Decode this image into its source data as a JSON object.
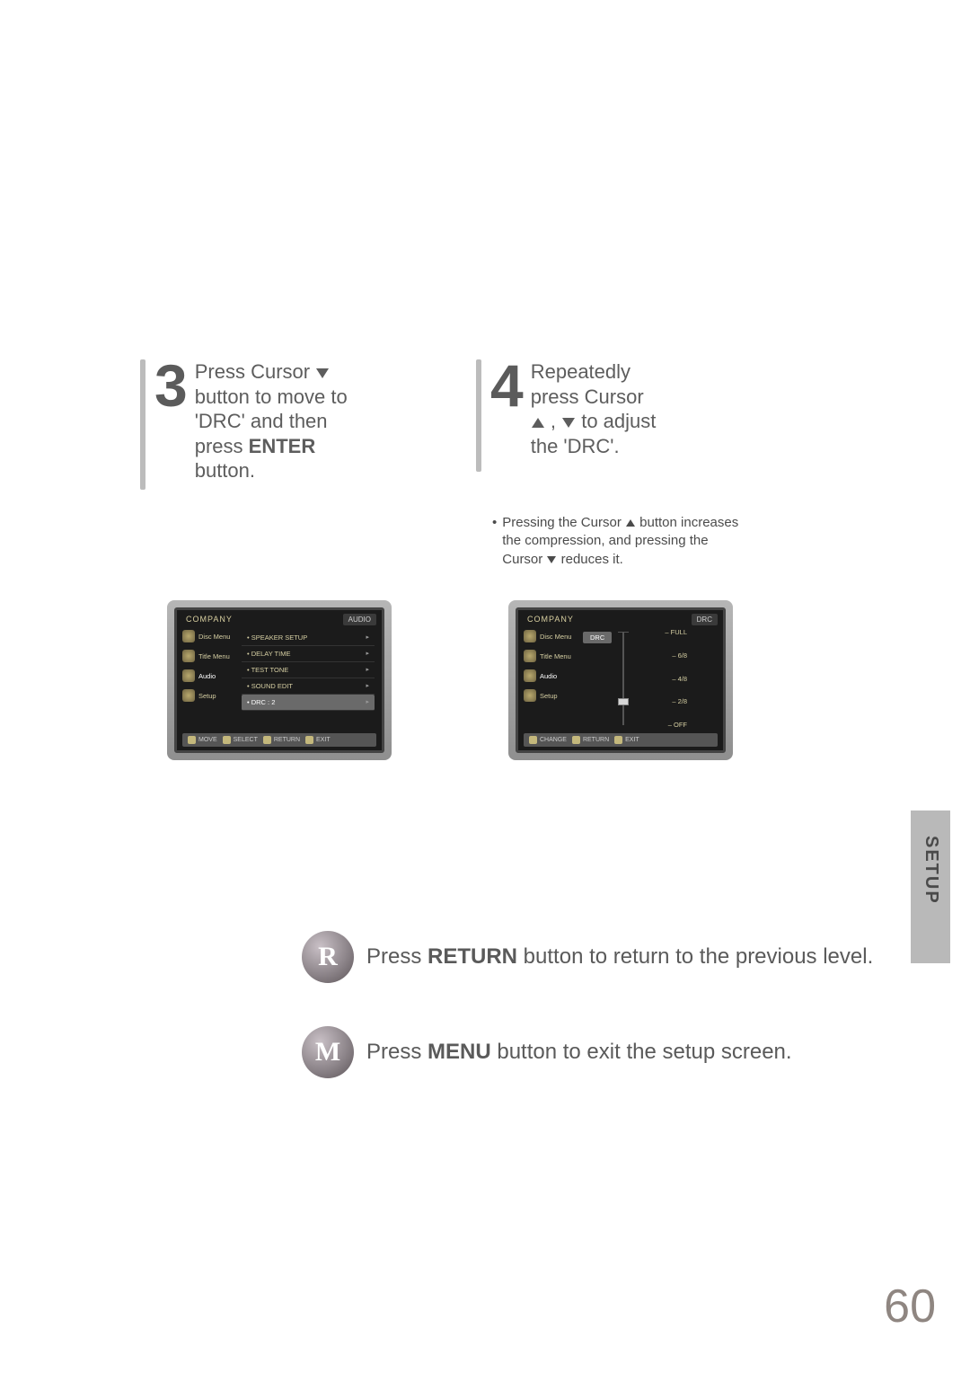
{
  "steps": {
    "s3": {
      "num": "3",
      "line1": "Press Cursor",
      "line2": "button to move to",
      "line3": "'DRC' and then",
      "line4a": "press ",
      "line4b": "ENTER",
      "line5": "button."
    },
    "s4": {
      "num": "4",
      "line1": "Repeatedly",
      "line2": "press Cursor",
      "line3a": ",",
      "line3b": " to adjust",
      "line4": "the 'DRC'."
    }
  },
  "note": {
    "l1a": "Pressing the Cursor ",
    "l1b": " button increases",
    "l2": "the compression, and pressing the",
    "l3a": "Cursor ",
    "l3b": " reduces it."
  },
  "tv3": {
    "title": "COMPANY",
    "tag": "AUDIO",
    "side": [
      "Disc Menu",
      "Title Menu",
      "Audio",
      "Setup"
    ],
    "rows": [
      {
        "label": "SPEAKER SETUP",
        "sel": false
      },
      {
        "label": "DELAY TIME",
        "sel": false
      },
      {
        "label": "TEST TONE",
        "sel": false
      },
      {
        "label": "SOUND EDIT",
        "sel": false
      },
      {
        "label": "DRC",
        "sel": true,
        "val": ": 2"
      }
    ],
    "footer": [
      "MOVE",
      "SELECT",
      "RETURN",
      "EXIT"
    ]
  },
  "tv4": {
    "title": "COMPANY",
    "tag": "DRC",
    "current": "DRC",
    "side": [
      "Disc Menu",
      "Title Menu",
      "Audio",
      "Setup"
    ],
    "levels": [
      "FULL",
      "6/8",
      "4/8",
      "2/8",
      "OFF"
    ],
    "handle_index": 3,
    "footer": [
      "CHANGE",
      "RETURN",
      "EXIT"
    ]
  },
  "tab": "SETUP",
  "rows": {
    "r": {
      "letter": "R",
      "t1": "Press ",
      "t2": "RETURN",
      "t3": " button to return to the previous level."
    },
    "m": {
      "letter": "M",
      "t1": "Press ",
      "t2": "MENU",
      "t3": " button to exit the setup screen."
    }
  },
  "page_number": "60",
  "colors": {
    "text_body": "#5d5d5d",
    "rule_gray": "#bcbcbc",
    "tab_bg": "#b9b9b9",
    "page_num": "#8f8681"
  }
}
